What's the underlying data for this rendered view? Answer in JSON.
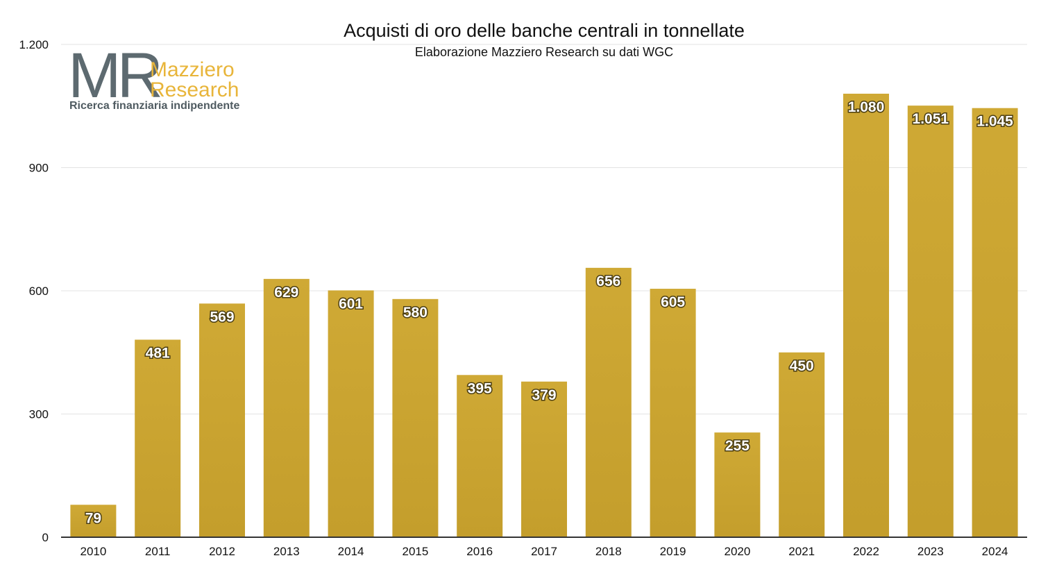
{
  "chart_data": {
    "type": "bar",
    "title": "Acquisti di oro delle banche centrali in tonnellate",
    "subtitle": "Elaborazione Mazziero Research su dati WGC",
    "xlabel": "",
    "ylabel": "",
    "categories": [
      "2010",
      "2011",
      "2012",
      "2013",
      "2014",
      "2015",
      "2016",
      "2017",
      "2018",
      "2019",
      "2020",
      "2021",
      "2022",
      "2023",
      "2024"
    ],
    "values": [
      79,
      481,
      569,
      629,
      601,
      580,
      395,
      379,
      656,
      605,
      255,
      450,
      1080,
      1051,
      1045
    ],
    "value_labels": [
      "79",
      "481",
      "569",
      "629",
      "601",
      "580",
      "395",
      "379",
      "656",
      "605",
      "255",
      "450",
      "1.080",
      "1.051",
      "1.045"
    ],
    "ylim": [
      0,
      1200
    ],
    "yticks": [
      0,
      300,
      600,
      900,
      1200
    ],
    "ytick_labels": [
      "0",
      "300",
      "600",
      "900",
      "1.200"
    ],
    "grid": true,
    "bar_color": "#c9a32f",
    "grid_color": "#e3e3e3"
  },
  "logo": {
    "mark": "MR",
    "line1": "Mazziero",
    "line2": "Research",
    "tagline": "Ricerca finanziaria indipendente",
    "mark_color": "#5d6a70",
    "word_color": "#e8b53a"
  }
}
